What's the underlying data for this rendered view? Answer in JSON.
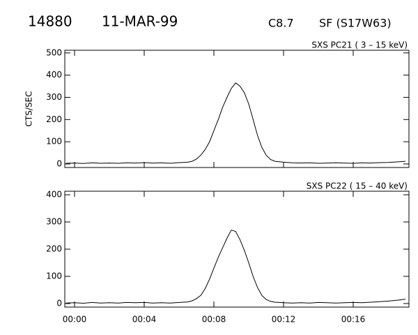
{
  "header": {
    "id": "14880",
    "date": "11-MAR-99",
    "class": "C8.7",
    "location": "SF (S17W63)"
  },
  "chart_data": [
    {
      "type": "line",
      "title": "SXS PC21  (  3 – 15 keV)",
      "ylabel": "CTS/SEC",
      "color": "#000000",
      "xlim": [
        -0.56,
        19.2
      ],
      "xticks": [
        0,
        4,
        8,
        12,
        16
      ],
      "ylim": [
        -16,
        512
      ],
      "yticks": [
        0,
        100,
        200,
        300,
        400,
        500
      ],
      "x": [
        -0.5,
        0,
        0.5,
        1,
        1.5,
        2,
        2.5,
        3,
        3.5,
        4,
        4.5,
        5,
        5.5,
        6,
        6.5,
        6.75,
        7,
        7.25,
        7.5,
        7.75,
        8,
        8.25,
        8.5,
        8.75,
        9,
        9.25,
        9.5,
        9.75,
        10,
        10.25,
        10.5,
        10.75,
        11,
        11.25,
        11.5,
        12,
        12.5,
        13,
        13.5,
        14,
        14.5,
        15,
        15.5,
        16,
        16.5,
        17,
        17.5,
        18,
        18.5,
        19
      ],
      "values": [
        3,
        4,
        2,
        5,
        3,
        4,
        3,
        5,
        4,
        6,
        4,
        5,
        3,
        6,
        8,
        12,
        22,
        40,
        65,
        100,
        150,
        200,
        255,
        300,
        340,
        365,
        350,
        320,
        270,
        200,
        130,
        75,
        40,
        20,
        12,
        8,
        5,
        4,
        5,
        3,
        4,
        5,
        4,
        3,
        5,
        4,
        6,
        7,
        9,
        12
      ]
    },
    {
      "type": "line",
      "title": "SXS PC22  ( 15 – 40 keV)",
      "color": "#000000",
      "xlim": [
        -0.56,
        19.2
      ],
      "xticks": [
        {
          "value": 0,
          "label": "00:00"
        },
        {
          "value": 4,
          "label": "00:04"
        },
        {
          "value": 8,
          "label": "00:08"
        },
        {
          "value": 12,
          "label": "00:12"
        },
        {
          "value": 16,
          "label": "00:16"
        }
      ],
      "ylim": [
        -13,
        413
      ],
      "yticks": [
        0,
        100,
        200,
        300,
        400
      ],
      "x": [
        -0.5,
        0,
        0.5,
        1,
        1.5,
        2,
        2.5,
        3,
        3.5,
        4,
        4.5,
        5,
        5.5,
        6,
        6.5,
        6.75,
        7,
        7.25,
        7.5,
        7.75,
        8,
        8.25,
        8.5,
        8.75,
        9,
        9.25,
        9.5,
        9.75,
        10,
        10.25,
        10.5,
        10.75,
        11,
        11.25,
        11.5,
        12,
        12.5,
        13,
        13.5,
        14,
        14.5,
        15,
        15.5,
        16,
        16.5,
        17,
        17.5,
        18,
        18.5,
        19
      ],
      "values": [
        2,
        3,
        1,
        4,
        2,
        3,
        2,
        4,
        3,
        4,
        2,
        3,
        2,
        4,
        6,
        10,
        18,
        30,
        55,
        90,
        130,
        170,
        205,
        240,
        270,
        265,
        235,
        195,
        150,
        100,
        60,
        30,
        15,
        8,
        5,
        3,
        2,
        3,
        2,
        4,
        3,
        2,
        3,
        4,
        3,
        5,
        7,
        9,
        12,
        16
      ]
    }
  ]
}
